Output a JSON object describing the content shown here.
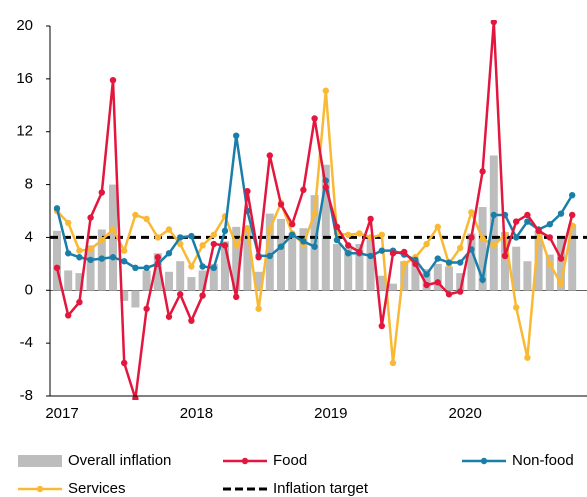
{
  "chart_data": {
    "type": "bar-line",
    "categories": [
      "2017",
      null,
      null,
      null,
      null,
      null,
      null,
      null,
      null,
      null,
      null,
      null,
      "2018",
      null,
      null,
      null,
      null,
      null,
      null,
      null,
      null,
      null,
      null,
      null,
      "2019",
      null,
      null,
      null,
      null,
      null,
      null,
      null,
      null,
      null,
      null,
      null,
      "2020",
      null,
      null,
      null,
      null,
      null,
      null,
      null,
      null,
      null,
      null
    ],
    "series": [
      {
        "name": "Overall inflation",
        "kind": "bar",
        "color": "#bdbdbd",
        "values": [
          4.5,
          1.5,
          1.3,
          3.4,
          4.6,
          8.0,
          -0.8,
          -1.3,
          1.5,
          2.8,
          1.4,
          2.2,
          1.0,
          1.5,
          2.0,
          3.7,
          4.8,
          4.6,
          1.4,
          5.8,
          5.4,
          4.3,
          4.7,
          7.2,
          9.5,
          3.5,
          3.2,
          3.5,
          4.0,
          1.1,
          0.5,
          2.2,
          2.3,
          1.6,
          2.0,
          1.8,
          1.3,
          4.3,
          6.3,
          10.2,
          4.4,
          3.3,
          2.2,
          4.5,
          2.7,
          3.9,
          5.0
        ]
      },
      {
        "name": "Food",
        "kind": "line",
        "color": "#e3173e",
        "values": [
          1.7,
          -1.9,
          -0.9,
          5.5,
          7.4,
          15.9,
          -5.5,
          -8.2,
          -1.4,
          2.5,
          -2.0,
          -0.3,
          -2.3,
          -0.4,
          3.5,
          3.4,
          -0.5,
          7.5,
          2.5,
          10.2,
          6.5,
          5.0,
          7.6,
          13.0,
          7.8,
          4.8,
          3.4,
          2.9,
          5.4,
          -2.7,
          2.8,
          2.9,
          2.0,
          0.4,
          0.6,
          -0.3,
          -0.1,
          4.0,
          9.0,
          20.3,
          2.6,
          5.2,
          5.7,
          4.5,
          4.0,
          2.4,
          5.7
        ]
      },
      {
        "name": "Non-food",
        "kind": "line",
        "color": "#1a7fa8",
        "values": [
          6.2,
          2.8,
          2.5,
          2.3,
          2.4,
          2.5,
          2.2,
          1.7,
          1.7,
          2.0,
          2.8,
          4.0,
          4.1,
          1.8,
          1.7,
          4.5,
          11.7,
          6.0,
          2.6,
          2.6,
          3.3,
          4.2,
          3.7,
          3.3,
          8.3,
          3.8,
          2.8,
          2.8,
          2.6,
          3.0,
          3.0,
          2.7,
          2.3,
          1.2,
          2.4,
          2.1,
          2.1,
          3.1,
          0.8,
          5.7,
          5.7,
          4.0,
          5.2,
          4.6,
          5.0,
          5.8,
          7.2
        ]
      },
      {
        "name": "Services",
        "kind": "line",
        "color": "#f9b934",
        "values": [
          6.0,
          5.1,
          3.0,
          3.1,
          3.8,
          4.6,
          3.0,
          5.7,
          5.4,
          4.0,
          4.6,
          3.5,
          1.8,
          3.4,
          4.2,
          5.6,
          3.4,
          4.7,
          -1.4,
          4.6,
          6.6,
          4.3,
          3.5,
          5.8,
          15.1,
          4.3,
          4.2,
          4.3,
          4.0,
          4.2,
          -5.5,
          2.0,
          2.5,
          3.5,
          4.8,
          2.0,
          3.2,
          5.9,
          3.9,
          3.4,
          4.2,
          -1.3,
          -5.1,
          4.5,
          2.0,
          0.5,
          4.9
        ]
      }
    ],
    "target": {
      "name": "Inflation target",
      "value": 4,
      "color": "#000000"
    },
    "ylim": [
      -8,
      20
    ],
    "yticks": [
      -8,
      -4,
      0,
      4,
      8,
      12,
      16,
      20
    ]
  }
}
